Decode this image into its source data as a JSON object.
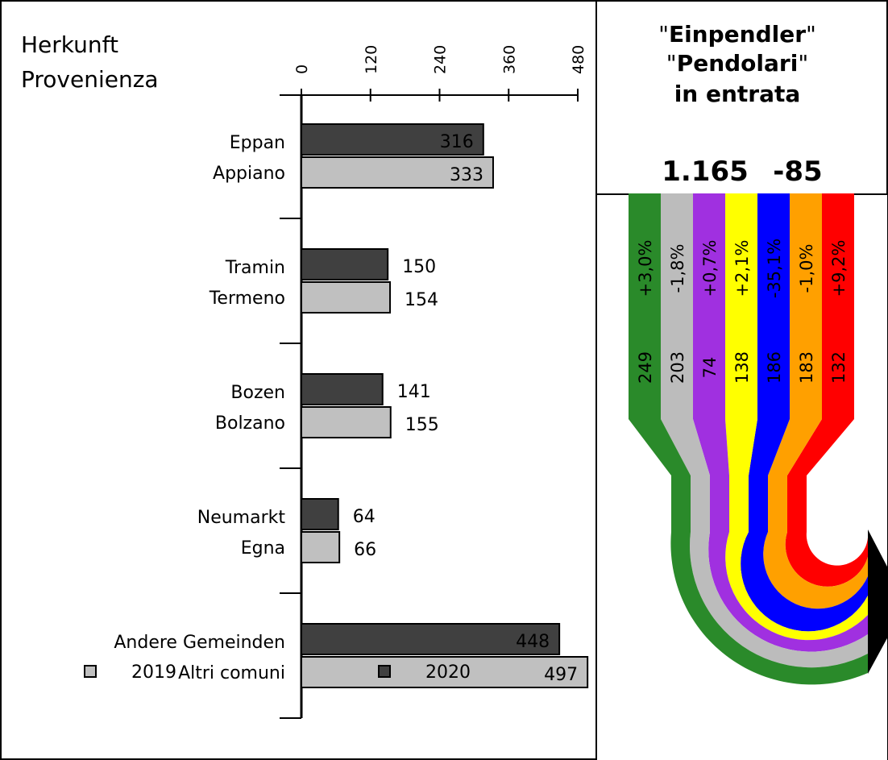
{
  "header": {
    "title_line1": "Herkunft",
    "title_line2": "Provenienza"
  },
  "summary": {
    "line1_quote_open": "\"",
    "line1_bold": "Einpendler",
    "line1_quote_close": "\"",
    "line2_quote_open": "\"",
    "line2_bold": "Pendolari",
    "line2_quote_close": "\"",
    "line3": "in entrata",
    "total": "1.165",
    "change": "-85"
  },
  "chart_data": {
    "type": "bar",
    "orientation": "horizontal",
    "xlim": [
      0,
      480
    ],
    "ticks": [
      0,
      120,
      240,
      360,
      480
    ],
    "categories": [
      [
        "Eppan",
        "Appiano"
      ],
      [
        "Tramin",
        "Termeno"
      ],
      [
        "Bozen",
        "Bolzano"
      ],
      [
        "Neumarkt",
        "Egna"
      ],
      [
        "Andere Gemeinden",
        "Altri comuni"
      ]
    ],
    "series": [
      {
        "name": "2020",
        "color": "#404040",
        "values": [
          316,
          150,
          141,
          64,
          448
        ]
      },
      {
        "name": "2019",
        "color": "#c0c0c0",
        "values": [
          333,
          154,
          155,
          66,
          497
        ]
      }
    ],
    "legend_position": "bottom",
    "legend_order": [
      "2019",
      "2020"
    ]
  },
  "flow_bands": [
    {
      "color": "#2a8a2a",
      "value": "249",
      "change": "+3,0%",
      "text_color": "#ffffff"
    },
    {
      "color": "#bcbcbc",
      "value": "203",
      "change": "-1,8%",
      "text_color": "#000000"
    },
    {
      "color": "#a030e0",
      "value": "74",
      "change": "+0,7%",
      "text_color": "#ffffff"
    },
    {
      "color": "#ffff00",
      "value": "138",
      "change": "+2,1%",
      "text_color": "#000000"
    },
    {
      "color": "#0000ff",
      "value": "186",
      "change": "-35,1%",
      "text_color": "#ffffff"
    },
    {
      "color": "#ffa000",
      "value": "183",
      "change": "-1,0%",
      "text_color": "#000000"
    },
    {
      "color": "#ff0000",
      "value": "132",
      "change": "+9,2%",
      "text_color": "#ffffff"
    }
  ]
}
